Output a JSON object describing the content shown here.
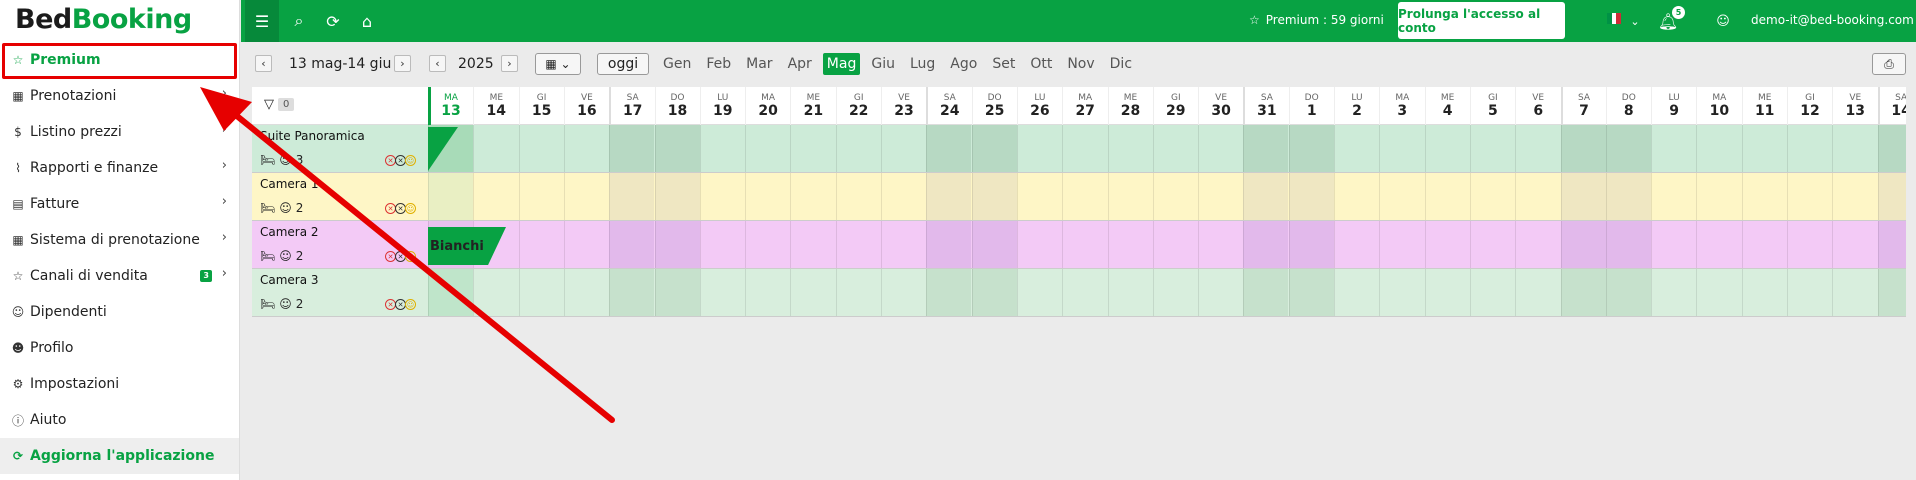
{
  "brand": {
    "part1": "Bed",
    "part2": "Booking"
  },
  "sidebar": {
    "items": [
      {
        "label": "Premium",
        "icon": "star-icon",
        "glyph": "☆",
        "chevron": false,
        "active": true
      },
      {
        "label": "Prenotazioni",
        "icon": "calendar-icon",
        "glyph": "▦",
        "chevron": true
      },
      {
        "label": "Listino prezzi",
        "icon": "dollar-icon",
        "glyph": "$",
        "chevron": true
      },
      {
        "label": "Rapporti e finanze",
        "icon": "chart-icon",
        "glyph": "⌇",
        "chevron": true
      },
      {
        "label": "Fatture",
        "icon": "invoice-icon",
        "glyph": "▤",
        "chevron": true
      },
      {
        "label": "Sistema di prenotazione",
        "icon": "grid-icon",
        "glyph": "▦",
        "chevron": true
      },
      {
        "label": "Canali di vendita",
        "icon": "star-icon",
        "glyph": "☆",
        "chevron": true,
        "badge": "3"
      },
      {
        "label": "Dipendenti",
        "icon": "users-icon",
        "glyph": "☺",
        "chevron": false
      },
      {
        "label": "Profilo",
        "icon": "user-icon",
        "glyph": "☻",
        "chevron": false
      },
      {
        "label": "Impostazioni",
        "icon": "gear-icon",
        "glyph": "⚙",
        "chevron": false
      },
      {
        "label": "Aiuto",
        "icon": "info-icon",
        "glyph": "ⓘ",
        "chevron": false
      },
      {
        "label": "Aggiorna l'applicazione",
        "icon": "refresh-icon",
        "glyph": "⟳",
        "chevron": false,
        "upgrade": true
      }
    ]
  },
  "topbar": {
    "premium_text": "Premium : 59 giorni",
    "extend_button": "Prolunga l'accesso al conto",
    "notif_count": "5",
    "user_email": "demo-it@bed-booking.com"
  },
  "toolbar": {
    "range": "13 mag-14 giu",
    "year": "2025",
    "today": "oggi",
    "months": [
      "Gen",
      "Feb",
      "Mar",
      "Apr",
      "Mag",
      "Giu",
      "Lug",
      "Ago",
      "Set",
      "Ott",
      "Nov",
      "Dic"
    ],
    "selected_month": "Mag"
  },
  "filter_count": "0",
  "days": [
    {
      "dw": "MA",
      "dn": "13",
      "today": true
    },
    {
      "dw": "ME",
      "dn": "14"
    },
    {
      "dw": "GI",
      "dn": "15"
    },
    {
      "dw": "VE",
      "dn": "16"
    },
    {
      "dw": "SA",
      "dn": "17",
      "we": true
    },
    {
      "dw": "DO",
      "dn": "18",
      "we": true
    },
    {
      "dw": "LU",
      "dn": "19"
    },
    {
      "dw": "MA",
      "dn": "20"
    },
    {
      "dw": "ME",
      "dn": "21"
    },
    {
      "dw": "GI",
      "dn": "22"
    },
    {
      "dw": "VE",
      "dn": "23"
    },
    {
      "dw": "SA",
      "dn": "24",
      "we": true
    },
    {
      "dw": "DO",
      "dn": "25",
      "we": true
    },
    {
      "dw": "LU",
      "dn": "26"
    },
    {
      "dw": "MA",
      "dn": "27"
    },
    {
      "dw": "ME",
      "dn": "28"
    },
    {
      "dw": "GI",
      "dn": "29"
    },
    {
      "dw": "VE",
      "dn": "30"
    },
    {
      "dw": "SA",
      "dn": "31",
      "we": true
    },
    {
      "dw": "DO",
      "dn": "1",
      "we": true
    },
    {
      "dw": "LU",
      "dn": "2"
    },
    {
      "dw": "MA",
      "dn": "3"
    },
    {
      "dw": "ME",
      "dn": "4"
    },
    {
      "dw": "GI",
      "dn": "5"
    },
    {
      "dw": "VE",
      "dn": "6"
    },
    {
      "dw": "SA",
      "dn": "7",
      "we": true
    },
    {
      "dw": "DO",
      "dn": "8",
      "we": true
    },
    {
      "dw": "LU",
      "dn": "9"
    },
    {
      "dw": "MA",
      "dn": "10"
    },
    {
      "dw": "ME",
      "dn": "11"
    },
    {
      "dw": "GI",
      "dn": "12"
    },
    {
      "dw": "VE",
      "dn": "13"
    },
    {
      "dw": "SA",
      "dn": "14",
      "we": true
    }
  ],
  "rooms": [
    {
      "name": "Suite Panoramica",
      "guests": "3",
      "color": "#cdebd8",
      "we_color": "#b7d9c3",
      "first_col": "#a8dbb8"
    },
    {
      "name": "Camera 1",
      "guests": "2",
      "color": "#fef6c6",
      "we_color": "#efe7c2",
      "first_col": "#e9efc3"
    },
    {
      "name": "Camera 2",
      "guests": "2",
      "color": "#f3caf6",
      "we_color": "#e2b9eb",
      "first_col": "#e9c1ee"
    },
    {
      "name": "Camera 3",
      "guests": "2",
      "color": "#d8eedd",
      "we_color": "#c6e1cc",
      "first_col": "#bfe5ca"
    }
  ],
  "booking": {
    "guest": "Bianchi"
  },
  "colors": {
    "accent": "#08a243",
    "highlight": "#e60000"
  }
}
